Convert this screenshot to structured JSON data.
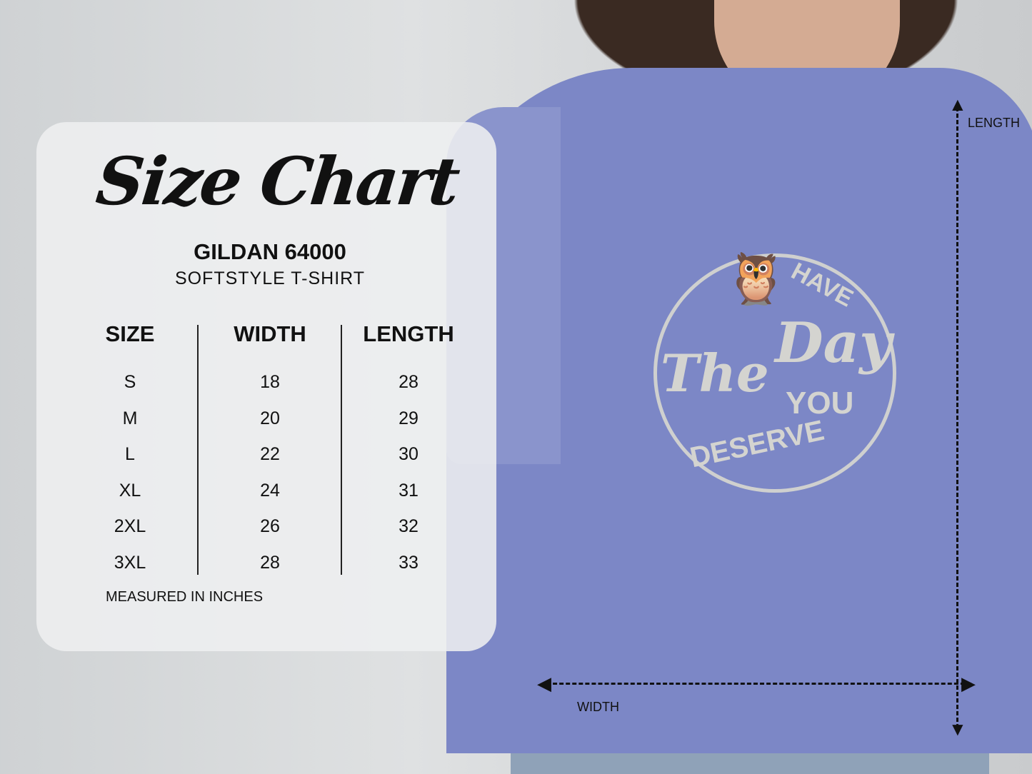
{
  "title": "Size Chart",
  "brand": "GILDAN 64000",
  "subtitle": "SOFTSTYLE T-SHIRT",
  "table": {
    "headers": [
      "SIZE",
      "WIDTH",
      "LENGTH"
    ],
    "rows": [
      [
        "S",
        "18",
        "28"
      ],
      [
        "M",
        "20",
        "29"
      ],
      [
        "L",
        "22",
        "30"
      ],
      [
        "XL",
        "24",
        "31"
      ],
      [
        "2XL",
        "26",
        "32"
      ],
      [
        "3XL",
        "28",
        "33"
      ]
    ]
  },
  "note": "MEASURED IN INCHES",
  "measure_labels": {
    "length": "LENGTH",
    "width": "WIDTH"
  },
  "shirt_design": {
    "line1": "HAVE",
    "line2": "The",
    "line3": "Day",
    "line4": "YOU",
    "line5": "DESERVE"
  },
  "colors": {
    "shirt": "#7c87c6",
    "panel": "#eeeff0",
    "text": "#111111"
  }
}
